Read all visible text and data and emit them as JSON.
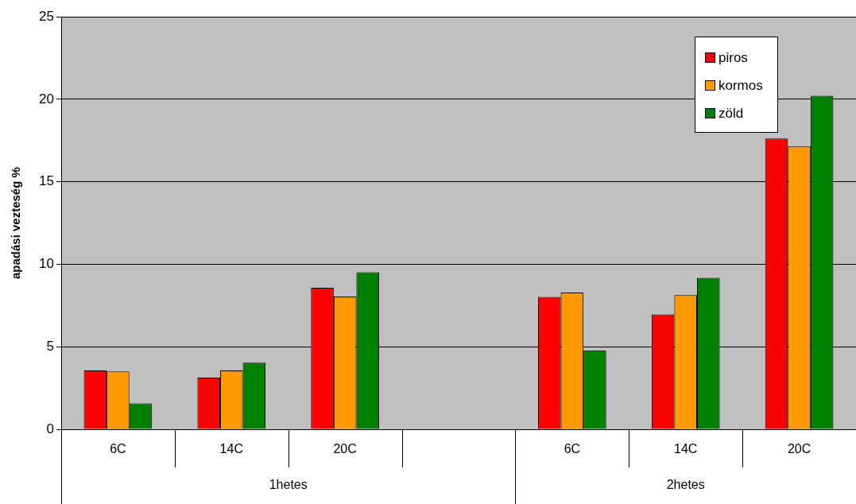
{
  "chart_data": {
    "type": "bar",
    "ylabel": "apadási vezteség %",
    "categories": [
      "6C",
      "14C",
      "20C",
      null,
      "6C",
      "14C",
      "20C"
    ],
    "series": [
      {
        "name": "piros",
        "color": "#ff0000",
        "values": [
          3.56,
          3.13,
          8.58,
          null,
          8.02,
          6.96,
          17.63
        ]
      },
      {
        "name": "kormos",
        "color": "#ff9900",
        "values": [
          3.5,
          3.56,
          8.05,
          null,
          8.29,
          8.13,
          17.14
        ]
      },
      {
        "name": "zöld",
        "color": "#008000",
        "values": [
          1.57,
          4.04,
          9.52,
          null,
          4.78,
          9.18,
          20.22
        ]
      }
    ],
    "annotations": [
      "1hetes",
      "2hetes"
    ],
    "ylim": [
      0,
      25
    ],
    "yticks": [
      0,
      5,
      10,
      15,
      20,
      25
    ],
    "grid": "y",
    "legend": "top right"
  }
}
